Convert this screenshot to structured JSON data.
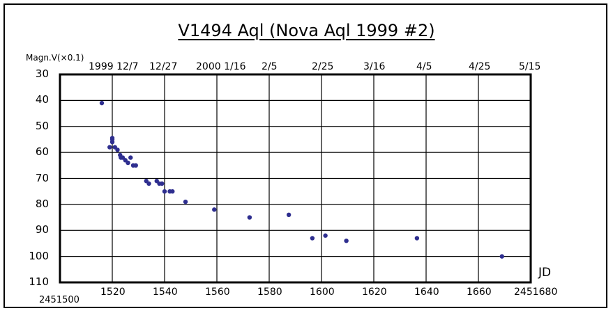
{
  "chart_data": {
    "type": "scatter",
    "title": "V1494 Aql (Nova Aql 1999 #2)",
    "ylabel": "Magn.V(×0.1)",
    "xlabel": "JD",
    "x_offset_label": "2451500",
    "x_end_label": "2451680",
    "xlim": [
      1500,
      1680
    ],
    "ylim": [
      30,
      110
    ],
    "y_inverted": true,
    "grid": true,
    "x_ticks": [
      1520,
      1540,
      1560,
      1580,
      1600,
      1620,
      1640,
      1660
    ],
    "y_ticks": [
      30,
      40,
      50,
      60,
      70,
      80,
      90,
      100,
      110
    ],
    "top_date_labels": [
      "1999 12/7",
      "12/27",
      "2000 1/16",
      "2/5",
      "2/25",
      "3/16",
      "4/5",
      "4/25",
      "5/15"
    ],
    "marker_color": "#2e2e8f",
    "points": [
      [
        1516,
        41
      ],
      [
        1520,
        54.5
      ],
      [
        1520,
        55
      ],
      [
        1520,
        56
      ],
      [
        1519,
        58
      ],
      [
        1521,
        58
      ],
      [
        1522,
        59
      ],
      [
        1523,
        61
      ],
      [
        1523.3,
        62
      ],
      [
        1524,
        62
      ],
      [
        1525,
        63
      ],
      [
        1526,
        64
      ],
      [
        1527,
        62
      ],
      [
        1528,
        65
      ],
      [
        1529,
        65
      ],
      [
        1533,
        71
      ],
      [
        1534,
        72
      ],
      [
        1537,
        71
      ],
      [
        1538,
        72
      ],
      [
        1539,
        72
      ],
      [
        1540,
        75
      ],
      [
        1542,
        75
      ],
      [
        1543,
        75
      ],
      [
        1548,
        79
      ],
      [
        1559,
        82
      ],
      [
        1572.5,
        85
      ],
      [
        1587.5,
        84
      ],
      [
        1596.5,
        93
      ],
      [
        1601.5,
        92
      ],
      [
        1609.5,
        94
      ],
      [
        1636.5,
        93
      ],
      [
        1669,
        100
      ]
    ]
  }
}
